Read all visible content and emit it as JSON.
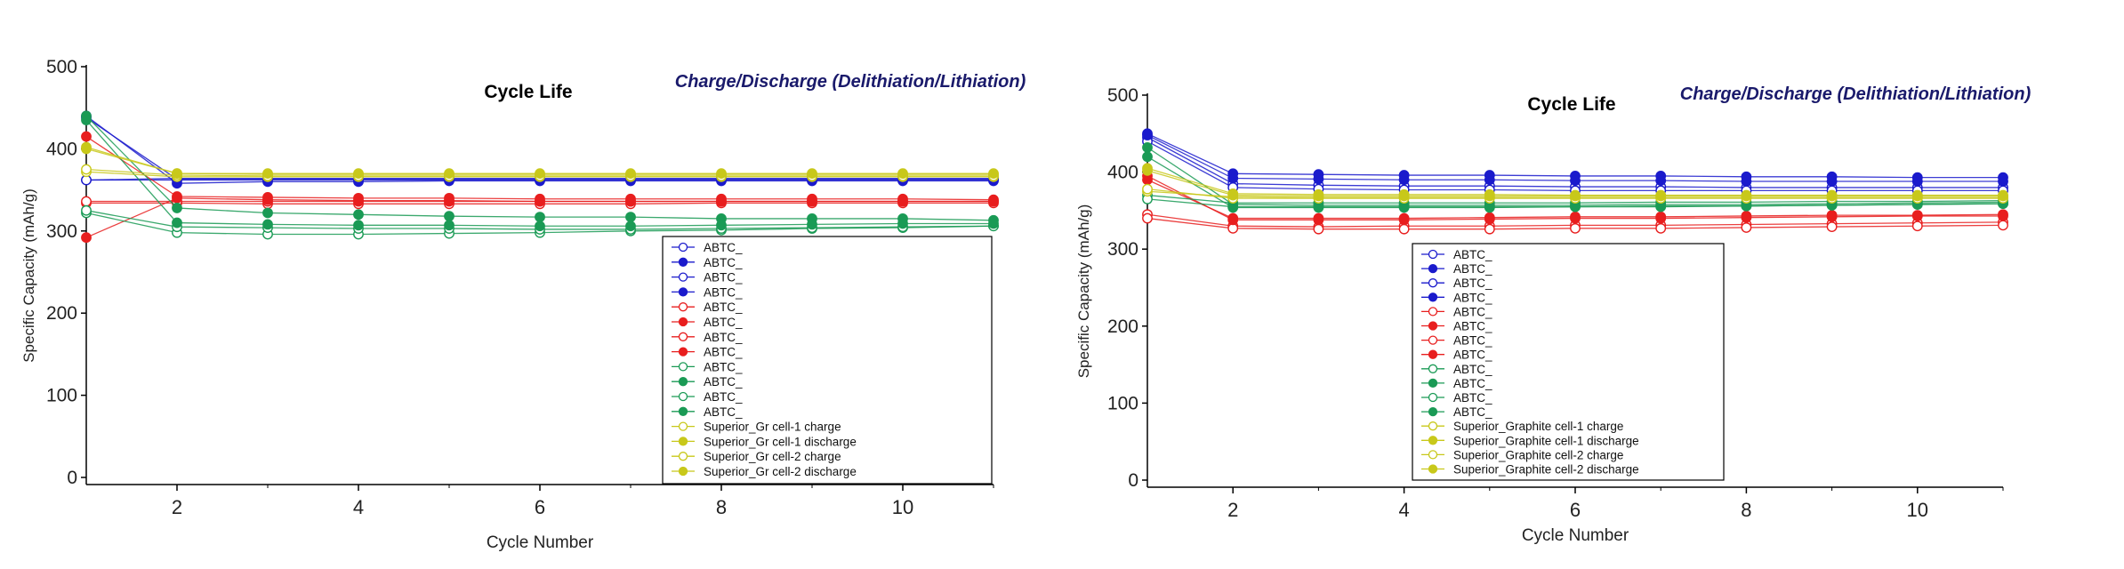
{
  "colors": {
    "blue": "#1a1acc",
    "red": "#e81e1e",
    "green": "#1a9a55",
    "yellow": "#c8c81a",
    "subtitle": "#1a1a6b",
    "axis": "#000000"
  },
  "chart_data": [
    {
      "type": "line",
      "title": "Cycle Life",
      "subtitle": "Charge/Discharge (Delithiation/Lithiation)",
      "xlabel": "Cycle Number",
      "ylabel": "Specific Capacity (mAh/g)",
      "xlim": [
        1,
        11
      ],
      "ylim": [
        0,
        500
      ],
      "xticks": [
        "2",
        "4",
        "6",
        "8",
        "10"
      ],
      "yticks": [
        "0",
        "100",
        "200",
        "300",
        "400",
        "500"
      ],
      "grid": false,
      "legend_position": "bottom-right",
      "x": [
        1,
        2,
        3,
        4,
        5,
        6,
        7,
        8,
        9,
        10,
        11
      ],
      "series": [
        {
          "name": "ABTC_",
          "color": "blue",
          "filled": false,
          "values": [
            362,
            362,
            362,
            362,
            362,
            362,
            362,
            362,
            362,
            362,
            362
          ]
        },
        {
          "name": "ABTC_",
          "color": "blue",
          "filled": true,
          "values": [
            440,
            358,
            360,
            360,
            361,
            361,
            361,
            361,
            361,
            361,
            361
          ]
        },
        {
          "name": "ABTC_",
          "color": "blue",
          "filled": false,
          "values": [
            362,
            364,
            364,
            364,
            364,
            364,
            364,
            364,
            364,
            364,
            364
          ]
        },
        {
          "name": "ABTC_",
          "color": "blue",
          "filled": true,
          "values": [
            438,
            363,
            363,
            363,
            363,
            363,
            363,
            363,
            363,
            363,
            363
          ]
        },
        {
          "name": "ABTC_",
          "color": "red",
          "filled": false,
          "values": [
            334,
            334,
            333,
            333,
            333,
            333,
            333,
            334,
            334,
            334,
            334
          ]
        },
        {
          "name": "ABTC_",
          "color": "red",
          "filled": true,
          "values": [
            415,
            342,
            341,
            340,
            340,
            339,
            339,
            339,
            339,
            339,
            338
          ]
        },
        {
          "name": "ABTC_",
          "color": "red",
          "filled": false,
          "values": [
            336,
            336,
            336,
            336,
            336,
            336,
            336,
            336,
            336,
            336,
            336
          ]
        },
        {
          "name": "ABTC_",
          "color": "red",
          "filled": true,
          "values": [
            292,
            340,
            338,
            337,
            337,
            336,
            336,
            336,
            336,
            336,
            336
          ]
        },
        {
          "name": "ABTC_",
          "color": "green",
          "filled": false,
          "values": [
            322,
            298,
            296,
            296,
            297,
            298,
            300,
            301,
            303,
            304,
            306
          ]
        },
        {
          "name": "ABTC_",
          "color": "green",
          "filled": true,
          "values": [
            440,
            328,
            322,
            320,
            318,
            317,
            317,
            315,
            315,
            315,
            313
          ]
        },
        {
          "name": "ABTC_",
          "color": "green",
          "filled": false,
          "values": [
            325,
            305,
            304,
            303,
            303,
            302,
            302,
            303,
            304,
            305,
            306
          ]
        },
        {
          "name": "ABTC_",
          "color": "green",
          "filled": true,
          "values": [
            435,
            310,
            308,
            307,
            307,
            306,
            306,
            307,
            308,
            309,
            309
          ]
        },
        {
          "name": "Superior_Gr cell-1 charge",
          "color": "yellow",
          "filled": false,
          "values": [
            372,
            366,
            366,
            366,
            366,
            366,
            366,
            366,
            366,
            366,
            366
          ]
        },
        {
          "name": "Superior_Gr cell-1 discharge",
          "color": "yellow",
          "filled": true,
          "values": [
            400,
            370,
            369,
            369,
            369,
            369,
            369,
            369,
            369,
            369,
            369
          ]
        },
        {
          "name": "Superior_Gr cell-2 charge",
          "color": "yellow",
          "filled": false,
          "values": [
            375,
            368,
            367,
            367,
            367,
            367,
            367,
            367,
            367,
            367,
            367
          ]
        },
        {
          "name": "Superior_Gr cell-2 discharge",
          "color": "yellow",
          "filled": true,
          "values": [
            402,
            370,
            370,
            370,
            370,
            370,
            370,
            370,
            370,
            370,
            370
          ]
        }
      ]
    },
    {
      "type": "line",
      "title": "Cycle Life",
      "subtitle": "Charge/Discharge (Delithiation/Lithiation)",
      "xlabel": "Cycle Number",
      "ylabel": "Specific Capacity (mAh/g)",
      "xlim": [
        1,
        11
      ],
      "ylim": [
        0,
        500
      ],
      "xticks": [
        "2",
        "4",
        "6",
        "8",
        "10"
      ],
      "yticks": [
        "0",
        "100",
        "200",
        "300",
        "400",
        "500"
      ],
      "grid": false,
      "legend_position": "bottom-center",
      "x": [
        1,
        2,
        3,
        4,
        5,
        6,
        7,
        8,
        9,
        10,
        11
      ],
      "series": [
        {
          "name": "ABTC_",
          "color": "blue",
          "filled": false,
          "values": [
            445,
            385,
            383,
            382,
            382,
            381,
            381,
            380,
            380,
            380,
            380
          ]
        },
        {
          "name": "ABTC_",
          "color": "blue",
          "filled": true,
          "values": [
            450,
            398,
            397,
            396,
            396,
            395,
            395,
            394,
            394,
            393,
            393
          ]
        },
        {
          "name": "ABTC_",
          "color": "blue",
          "filled": false,
          "values": [
            440,
            380,
            378,
            377,
            377,
            376,
            376,
            376,
            376,
            376,
            376
          ]
        },
        {
          "name": "ABTC_",
          "color": "blue",
          "filled": true,
          "values": [
            448,
            392,
            391,
            390,
            390,
            389,
            389,
            388,
            388,
            388,
            388
          ]
        },
        {
          "name": "ABTC_",
          "color": "red",
          "filled": false,
          "values": [
            345,
            330,
            329,
            330,
            330,
            331,
            331,
            332,
            333,
            334,
            335
          ]
        },
        {
          "name": "ABTC_",
          "color": "red",
          "filled": true,
          "values": [
            390,
            340,
            340,
            340,
            341,
            342,
            342,
            343,
            344,
            344,
            345
          ]
        },
        {
          "name": "ABTC_",
          "color": "red",
          "filled": false,
          "values": [
            340,
            327,
            326,
            326,
            326,
            327,
            327,
            328,
            329,
            330,
            331
          ]
        },
        {
          "name": "ABTC_",
          "color": "red",
          "filled": true,
          "values": [
            395,
            338,
            338,
            338,
            339,
            340,
            340,
            341,
            342,
            343,
            343
          ]
        },
        {
          "name": "ABTC_",
          "color": "green",
          "filled": false,
          "values": [
            370,
            360,
            360,
            360,
            360,
            360,
            361,
            361,
            362,
            362,
            363
          ]
        },
        {
          "name": "ABTC_",
          "color": "green",
          "filled": true,
          "values": [
            432,
            358,
            357,
            357,
            357,
            357,
            358,
            358,
            359,
            360,
            361
          ]
        },
        {
          "name": "ABTC_",
          "color": "green",
          "filled": false,
          "values": [
            365,
            355,
            355,
            355,
            355,
            355,
            356,
            356,
            357,
            358,
            359
          ]
        },
        {
          "name": "ABTC_",
          "color": "green",
          "filled": true,
          "values": [
            420,
            354,
            354,
            354,
            354,
            355,
            355,
            356,
            357,
            358,
            359
          ]
        },
        {
          "name": "Superior_Graphite cell-1 charge",
          "color": "yellow",
          "filled": false,
          "values": [
            375,
            368,
            367,
            367,
            367,
            367,
            367,
            367,
            367,
            367,
            367
          ]
        },
        {
          "name": "Superior_Graphite cell-1 discharge",
          "color": "yellow",
          "filled": true,
          "values": [
            405,
            372,
            371,
            371,
            371,
            370,
            370,
            370,
            370,
            370,
            370
          ]
        },
        {
          "name": "Superior_Graphite cell-2 charge",
          "color": "yellow",
          "filled": false,
          "values": [
            378,
            366,
            366,
            366,
            366,
            366,
            366,
            366,
            366,
            366,
            366
          ]
        },
        {
          "name": "Superior_Graphite cell-2 discharge",
          "color": "yellow",
          "filled": true,
          "values": [
            402,
            370,
            369,
            369,
            369,
            369,
            369,
            369,
            369,
            369,
            369
          ]
        }
      ]
    }
  ]
}
